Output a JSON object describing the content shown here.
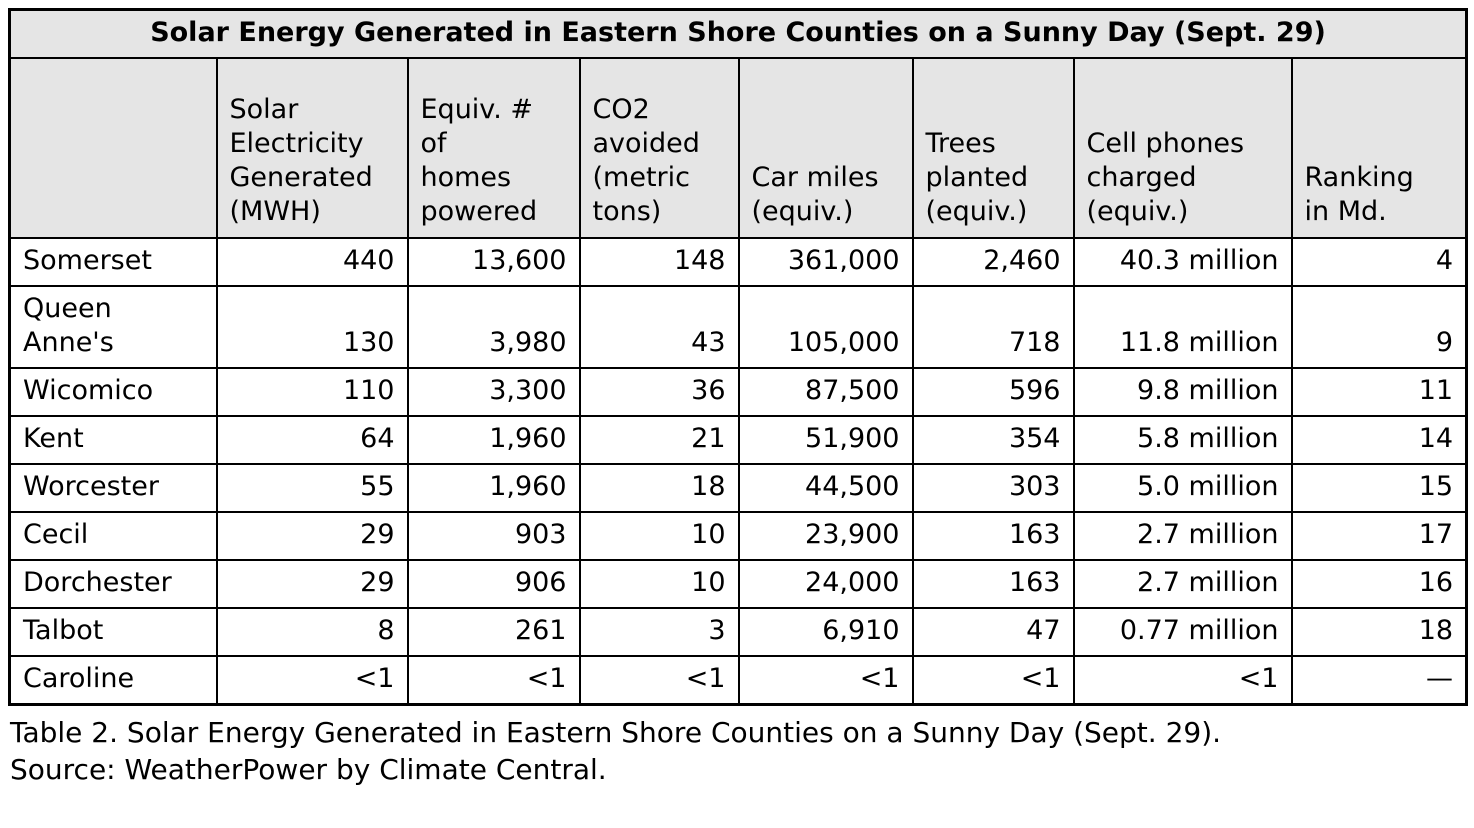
{
  "chart_data": {
    "type": "table",
    "title": "Solar Energy Generated in Eastern Shore Counties on a Sunny Day (Sept. 29)",
    "columns": [
      "",
      "Solar\nElectricity\nGenerated\n(MWH)",
      "Equiv. #\nof\nhomes\npowered",
      "CO2\navoided\n(metric\ntons)",
      "Car miles\n(equiv.)",
      "Trees\nplanted\n(equiv.)",
      "Cell phones\ncharged\n(equiv.)",
      "Ranking\nin Md."
    ],
    "rows": [
      [
        "Somerset",
        "440",
        "13,600",
        "148",
        "361,000",
        "2,460",
        "40.3 million",
        "4"
      ],
      [
        "Queen Anne's",
        "130",
        "3,980",
        "43",
        "105,000",
        "718",
        "11.8 million",
        "9"
      ],
      [
        "Wicomico",
        "110",
        "3,300",
        "36",
        "87,500",
        "596",
        "9.8 million",
        "11"
      ],
      [
        "Kent",
        "64",
        "1,960",
        "21",
        "51,900",
        "354",
        "5.8 million",
        "14"
      ],
      [
        "Worcester",
        "55",
        "1,960",
        "18",
        "44,500",
        "303",
        "5.0 million",
        "15"
      ],
      [
        "Cecil",
        "29",
        "903",
        "10",
        "23,900",
        "163",
        "2.7 million",
        "17"
      ],
      [
        "Dorchester",
        "29",
        "906",
        "10",
        "24,000",
        "163",
        "2.7 million",
        "16"
      ],
      [
        "Talbot",
        "8",
        "261",
        "3",
        "6,910",
        "47",
        "0.77 million",
        "18"
      ],
      [
        "Caroline",
        "<1",
        "<1",
        "<1",
        "<1",
        "<1",
        "<1",
        "—"
      ]
    ],
    "layout": {
      "header_background": "#e5e5e5",
      "border_color": "#000000",
      "grid": true,
      "first_column_align": "left",
      "value_columns_align": "right"
    }
  },
  "caption": "Table 2. Solar Energy Generated in Eastern Shore Counties on a Sunny Day (Sept. 29). Source: WeatherPower by Climate Central."
}
